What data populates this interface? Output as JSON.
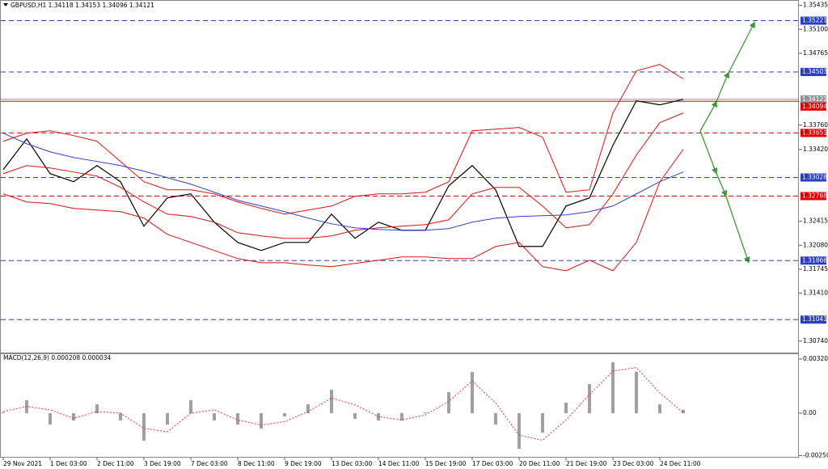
{
  "chart_data": [
    {
      "type": "line",
      "title": "GBPUSD,H1 1.34118 1.34153 1.34096 1.34121",
      "categories": [
        "29 Nov 2021",
        null,
        "1 Dec 03:00",
        null,
        "2 Dec 11:00",
        null,
        "3 Dec 19:00",
        null,
        "7 Dec 03:00",
        null,
        "8 Dec 11:00",
        null,
        "9 Dec 19:00",
        null,
        "13 Dec 03:00",
        null,
        "14 Dec 11:00",
        null,
        "15 Dec 19:00",
        null,
        "17 Dec 03:00",
        null,
        "20 Dec 11:00",
        null,
        "21 Dec 19:00",
        null,
        "23 Dec 03:00",
        null,
        "24 Dec 11:00",
        null
      ],
      "series": [
        {
          "color": "#000000",
          "values": [
            1.33138,
            1.33568,
            1.33082,
            1.32969,
            1.33195,
            1.32969,
            1.32347,
            1.32743,
            1.32799,
            1.32403,
            1.3212,
            1.32007,
            1.3212,
            1.3212,
            1.32516,
            1.32177,
            1.32403,
            1.3229,
            1.3229,
            1.32912,
            1.33195,
            1.32856,
            1.32064,
            1.32064,
            1.32629,
            1.32743,
            1.33478,
            1.341,
            1.34044,
            1.34121
          ]
        },
        {
          "color": "#e01010",
          "values": [
            1.33534,
            1.33648,
            1.33681,
            1.33614,
            1.33534,
            1.33252,
            1.32969,
            1.32856,
            1.32856,
            1.32799,
            1.32686,
            1.32595,
            1.32516,
            1.32573,
            1.32629,
            1.32765,
            1.32799,
            1.32799,
            1.32822,
            1.32969,
            1.33681,
            1.33704,
            1.33727,
            1.33591,
            1.32822,
            1.32856,
            1.3393,
            1.34519,
            1.34609,
            1.34406
          ]
        },
        {
          "color": "#e01010",
          "values": [
            1.33082,
            1.33195,
            1.33161,
            1.33105,
            1.33048,
            1.3289,
            1.32686,
            1.32516,
            1.32482,
            1.32403,
            1.32256,
            1.32211,
            1.32177,
            1.32177,
            1.32211,
            1.3229,
            1.32324,
            1.32347,
            1.32369,
            1.32437,
            1.32799,
            1.3289,
            1.3289,
            1.32629,
            1.32324,
            1.32369,
            1.32799,
            1.33342,
            1.33795,
            1.3393
          ]
        },
        {
          "color": "#e01010",
          "values": [
            1.32799,
            1.32686,
            1.32663,
            1.32595,
            1.32573,
            1.3255,
            1.3246,
            1.32233,
            1.3212,
            1.32007,
            1.31894,
            1.31837,
            1.31837,
            1.31804,
            1.31781,
            1.31826,
            1.31871,
            1.31917,
            1.31917,
            1.31894,
            1.31894,
            1.32064,
            1.3212,
            1.31781,
            1.31724,
            1.31871,
            1.31724,
            1.3212,
            1.32969,
            1.33421
          ]
        },
        {
          "color": "#3040d0",
          "values": [
            1.33648,
            1.335,
            1.33387,
            1.33308,
            1.33252,
            1.33195,
            1.33116,
            1.33025,
            1.32935,
            1.32822,
            1.32709,
            1.32629,
            1.3255,
            1.3246,
            1.3238,
            1.32324,
            1.32301,
            1.3229,
            1.3229,
            1.32313,
            1.32403,
            1.3246,
            1.32482,
            1.32494,
            1.32505,
            1.3255,
            1.32629,
            1.32799,
            1.32969,
            1.33105
          ]
        }
      ],
      "levels": [
        {
          "value": 1.35221,
          "color": "#2a3fbf",
          "style": "dashed"
        },
        {
          "value": 1.34503,
          "color": "#2a3fbf",
          "style": "dashed"
        },
        {
          "value": 1.34121,
          "color": "#8c949c",
          "style": "solid"
        },
        {
          "value": 1.34094,
          "color": "#e00000",
          "style": "solid"
        },
        {
          "value": 1.33651,
          "color": "#e00000",
          "style": "dashed"
        },
        {
          "value": 1.33028,
          "color": "#2a3fbf",
          "style": "dashed"
        },
        {
          "value": 1.32768,
          "color": "#e00000",
          "style": "dashed"
        },
        {
          "value": 1.31866,
          "color": "#2a3fbf",
          "style": "dashed"
        },
        {
          "value": 1.31041,
          "color": "#2a3fbf",
          "style": "dashed"
        }
      ],
      "ylim": [
        1.3058,
        1.3551
      ],
      "yticks": [
        1.35435,
        {
          "value": 1.351,
          "label": "1.35100"
        },
        1.34765,
        {
          "value": 1.3376,
          "label": "1.33760"
        },
        {
          "value": 1.3342,
          "label": "1.33420"
        },
        1.32415,
        {
          "value": 1.3208,
          "label": "1.32080"
        },
        1.31745,
        {
          "value": 1.3141,
          "label": "1.31410"
        },
        {
          "value": 1.3074,
          "label": "1.30740"
        }
      ]
    },
    {
      "type": "bar",
      "title": "MACD(12,26,9) 0.000208 0.000034",
      "color": "#a0a0a0",
      "values": [
        4.8e-05,
        0.000766,
        -0.000671,
        -0.000431,
        0.000527,
        -0.000431,
        -0.001628,
        -0.000671,
        0.000766,
        -0.000431,
        -0.000671,
        -0.00091,
        -0.000192,
        0.000527,
        0.001389,
        -0.000335,
        -0.000431,
        -0.000431,
        4.8e-05,
        0.001245,
        0.002443,
        -0.000671,
        -0.002107,
        -0.001149,
        0.000623,
        0.001724,
        0.003017,
        0.002443,
        0.000527,
        0.000208
      ],
      "series": [
        {
          "color": "#e03030",
          "style": "dotted",
          "values": [
            0.0001,
            0.0004,
            0.0002,
            -0.0003,
            0.0001,
            0,
            -0.0009,
            -0.0011,
            0,
            0.0002,
            -0.0004,
            -0.0007,
            -0.0005,
            0.0001,
            0.0009,
            0.0005,
            -0.0002,
            -0.0004,
            -0.0001,
            0.0007,
            0.0019,
            0.0006,
            -0.0013,
            -0.0016,
            -0.0004,
            0.0011,
            0.0025,
            0.0027,
            0.0012,
            3.4e-05
          ]
        }
      ],
      "ylim": [
        -0.00263,
        0.00354
      ],
      "yticks": [
        0.003209,
        {
          "value": 0,
          "label": "0.00"
        },
        -0.002506
      ]
    }
  ]
}
